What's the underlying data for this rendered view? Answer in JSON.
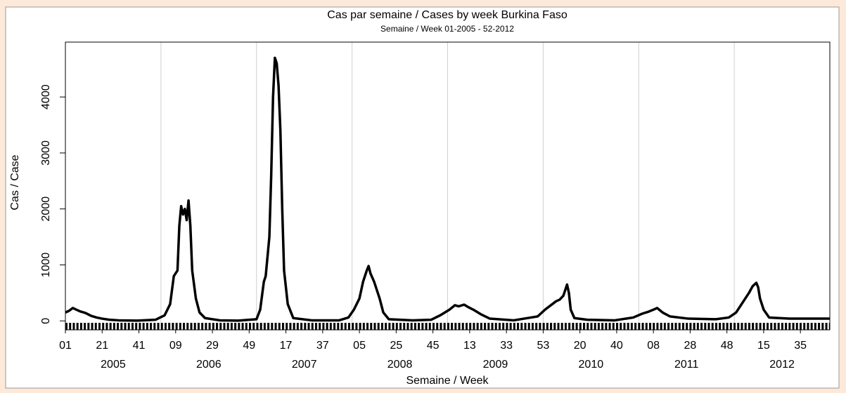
{
  "chart_data": {
    "type": "line",
    "title": "Cas par semaine / Cases by week Burkina Faso",
    "subtitle": "Semaine / Week 01-2005 - 52-2012",
    "ylabel": "Cas / Case",
    "xlabel": "Semaine / Week",
    "year_labels": [
      "2005",
      "2006",
      "2007",
      "2008",
      "2009",
      "2010",
      "2011",
      "2012"
    ],
    "xlim": [
      1,
      417
    ],
    "ylim": [
      -160,
      4980
    ],
    "yticks": [
      0,
      1000,
      2000,
      3000,
      4000
    ],
    "xticks": [
      {
        "value": 1,
        "label": "01"
      },
      21,
      41,
      {
        "value": 61,
        "label": "09"
      },
      {
        "value": 81,
        "label": "29"
      },
      {
        "value": 101,
        "label": "49"
      },
      {
        "value": 121,
        "label": "17"
      },
      {
        "value": 141,
        "label": "37"
      },
      {
        "value": 161,
        "label": "05"
      },
      {
        "value": 181,
        "label": "25"
      },
      {
        "value": 201,
        "label": "45"
      },
      {
        "value": 221,
        "label": "13"
      },
      {
        "value": 241,
        "label": "33"
      },
      {
        "value": 261,
        "label": "53"
      },
      {
        "value": 281,
        "label": "20"
      },
      {
        "value": 301,
        "label": "40"
      },
      {
        "value": 321,
        "label": "08"
      },
      {
        "value": 341,
        "label": "28"
      },
      {
        "value": 361,
        "label": "48"
      },
      {
        "value": 381,
        "label": "15"
      },
      {
        "value": 401,
        "label": "35"
      }
    ],
    "color": "#000000",
    "x": [
      1,
      3,
      5,
      7,
      9,
      12,
      15,
      18,
      21,
      25,
      30,
      40,
      50,
      55,
      58,
      60,
      62,
      63,
      64,
      65,
      66,
      67,
      68,
      69,
      70,
      72,
      74,
      77,
      85,
      95,
      105,
      107,
      109,
      110,
      112,
      113,
      114,
      115,
      116,
      117,
      118,
      119,
      120,
      122,
      125,
      135,
      150,
      155,
      158,
      161,
      163,
      165,
      166,
      167,
      169,
      170,
      172,
      174,
      177,
      190,
      200,
      205,
      210,
      213,
      215,
      218,
      220,
      223,
      227,
      232,
      245,
      258,
      262,
      266,
      268,
      270,
      272,
      273,
      274,
      275,
      276,
      278,
      285,
      300,
      310,
      315,
      318,
      321,
      323,
      326,
      330,
      340,
      355,
      362,
      366,
      370,
      373,
      375,
      377,
      378,
      379,
      381,
      384,
      395,
      405,
      417
    ],
    "values": [
      150,
      180,
      230,
      200,
      170,
      140,
      90,
      60,
      40,
      20,
      10,
      5,
      20,
      100,
      300,
      800,
      900,
      1700,
      2050,
      1900,
      2000,
      1800,
      2150,
      1700,
      900,
      400,
      150,
      50,
      10,
      5,
      30,
      200,
      700,
      800,
      1500,
      2600,
      4000,
      4700,
      4600,
      4200,
      3400,
      2000,
      900,
      300,
      50,
      10,
      10,
      60,
      200,
      400,
      700,
      900,
      980,
      850,
      700,
      600,
      400,
      150,
      30,
      10,
      20,
      100,
      200,
      280,
      260,
      290,
      250,
      200,
      120,
      40,
      10,
      80,
      200,
      300,
      350,
      380,
      450,
      550,
      650,
      500,
      200,
      50,
      20,
      10,
      60,
      130,
      160,
      200,
      230,
      150,
      80,
      40,
      30,
      60,
      150,
      350,
      500,
      620,
      680,
      600,
      400,
      200,
      60,
      40,
      40,
      40
    ]
  }
}
